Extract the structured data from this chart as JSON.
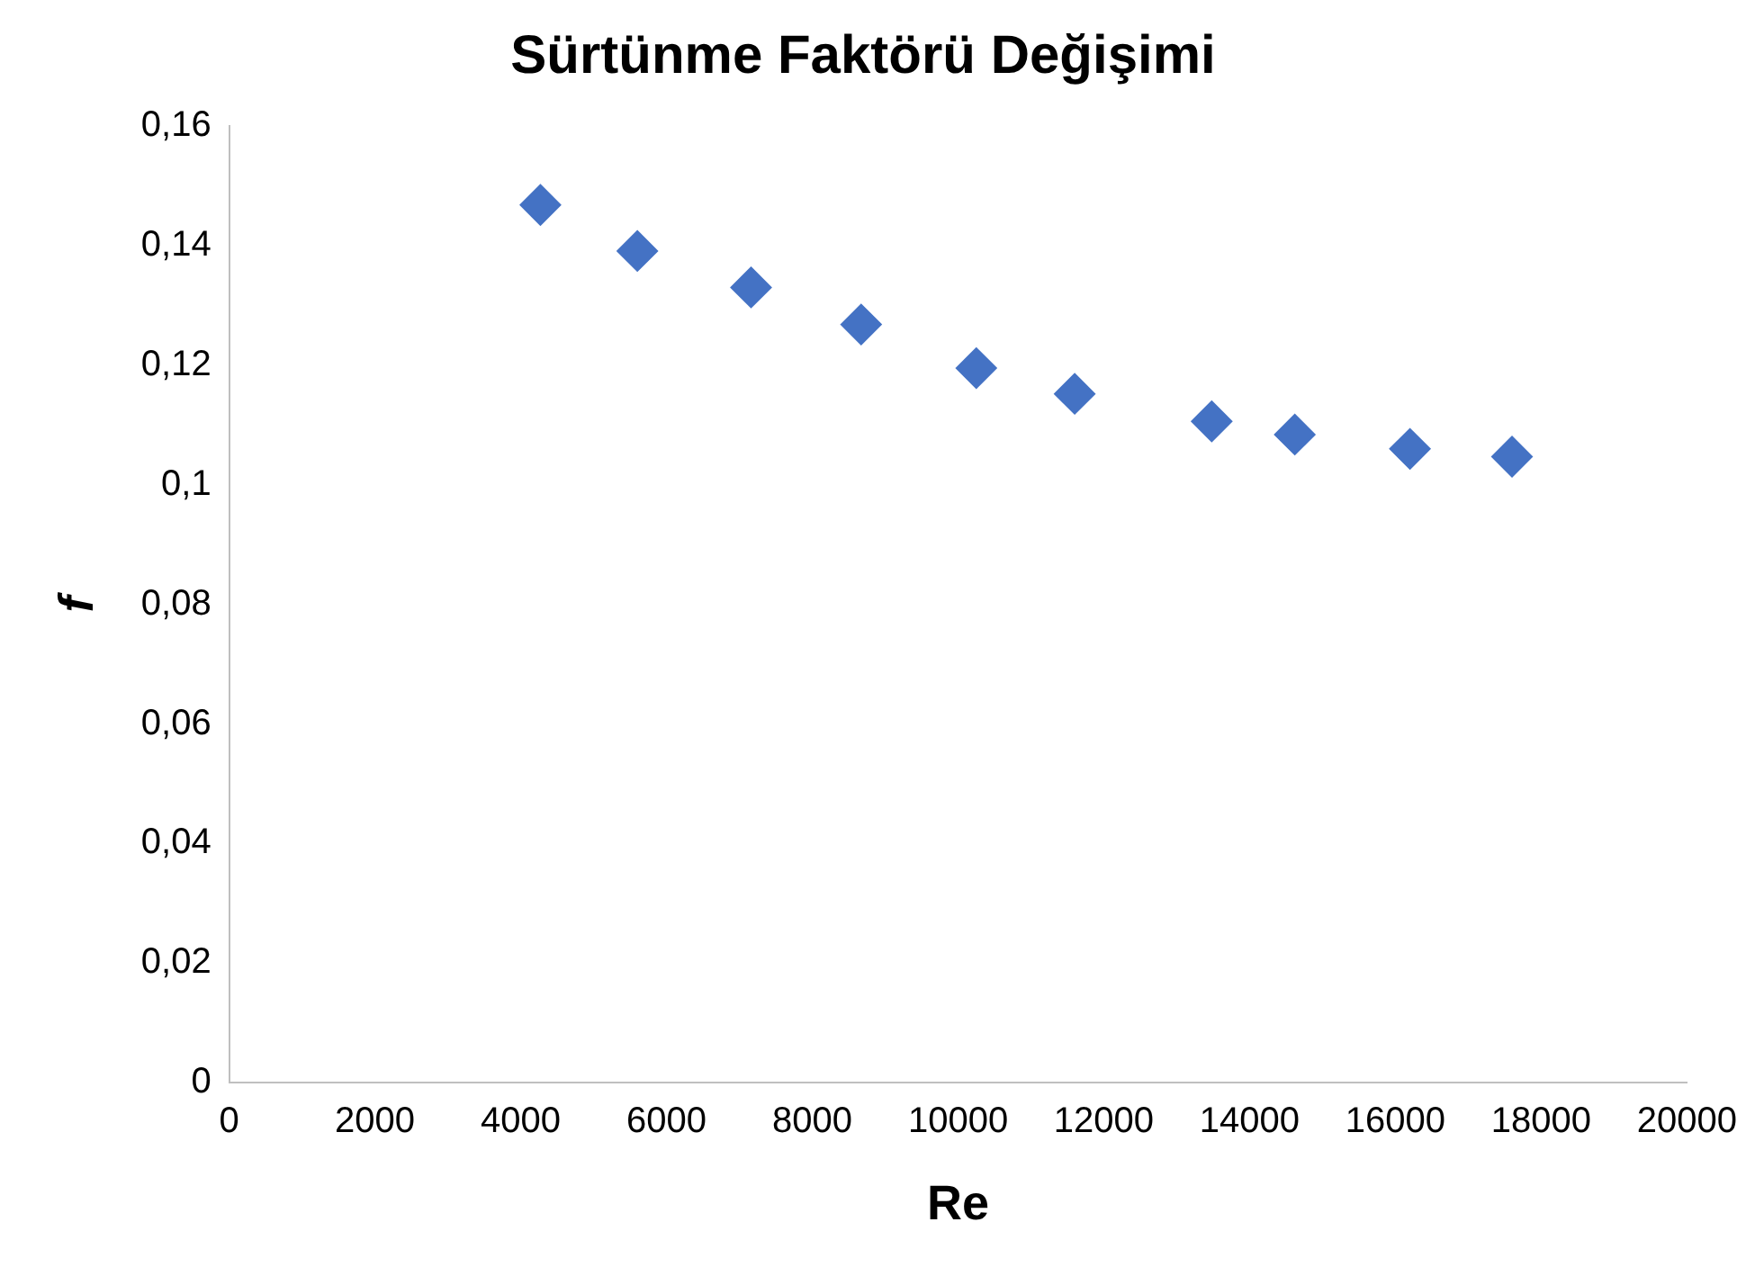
{
  "chart_data": {
    "type": "scatter",
    "title": "Sürtünme Faktörü Değişimi",
    "xlabel": "Re",
    "ylabel": "f",
    "x": [
      4270,
      5600,
      7160,
      8670,
      10250,
      11600,
      13480,
      14620,
      16200,
      17600
    ],
    "series": [
      {
        "color": "#4472c4",
        "values": [
          0.1468,
          0.1391,
          0.133,
          0.1268,
          0.1195,
          0.1152,
          0.1106,
          0.1084,
          0.106,
          0.1047
        ]
      }
    ],
    "xlim": [
      0,
      20000
    ],
    "xticks": [
      0,
      2000,
      4000,
      6000,
      8000,
      10000,
      12000,
      14000,
      16000,
      18000,
      20000
    ],
    "ylim": [
      0,
      0.16
    ],
    "yticks": [
      0,
      {
        "value": 0.02,
        "label": "0,02"
      },
      {
        "value": 0.04,
        "label": "0,04"
      },
      {
        "value": 0.06,
        "label": "0,06"
      },
      {
        "value": 0.08,
        "label": "0,08"
      },
      {
        "value": 0.1,
        "label": "0,1"
      },
      {
        "value": 0.12,
        "label": "0,12"
      },
      {
        "value": 0.14,
        "label": "0,14"
      },
      {
        "value": 0.16,
        "label": "0,16"
      }
    ],
    "grid": false,
    "legend": false,
    "marker": "diamond"
  }
}
